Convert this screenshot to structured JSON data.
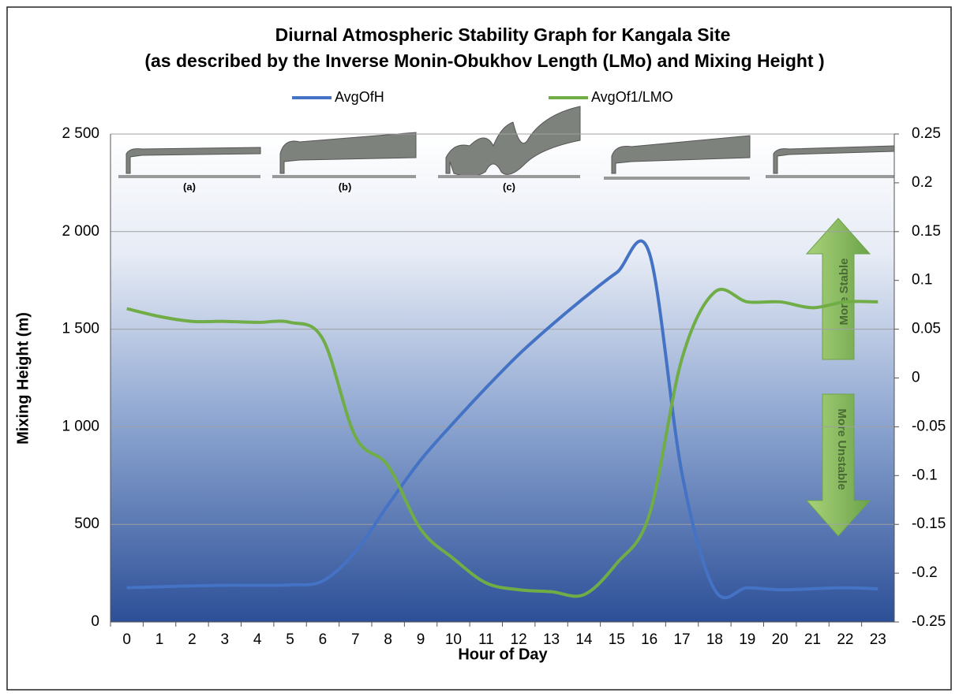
{
  "chart_data": {
    "type": "line",
    "title": "Diurnal Atmospheric Stability Graph for Kangala Site",
    "subtitle": "(as described by the Inverse Monin-Obukhov Length (LMo) and Mixing Height )",
    "x_label": "Hour of Day",
    "y_label": "Mixing Height (m)",
    "categories": [
      0,
      1,
      2,
      3,
      4,
      5,
      6,
      7,
      8,
      9,
      10,
      11,
      12,
      13,
      14,
      15,
      16,
      17,
      18,
      19,
      20,
      21,
      22,
      23
    ],
    "series": [
      {
        "name": "AvgOfH",
        "color": "#4472c4",
        "values": [
          175,
          180,
          185,
          188,
          188,
          190,
          210,
          360,
          600,
          830,
          1020,
          1200,
          1370,
          1520,
          1660,
          1790,
          1890,
          760,
          165,
          175,
          165,
          170,
          175,
          170
        ]
      },
      {
        "name": "AvgOf1/LMO",
        "color": "#70ad47",
        "axis": "y2",
        "values": [
          0.071,
          0.063,
          0.058,
          0.058,
          0.057,
          0.057,
          0.04,
          -0.06,
          -0.09,
          -0.155,
          -0.185,
          -0.21,
          -0.217,
          -0.219,
          -0.222,
          -0.19,
          -0.14,
          0.02,
          0.088,
          0.078,
          0.078,
          0.072,
          0.078,
          0.078
        ]
      }
    ],
    "ylim": [
      0,
      2500
    ],
    "yticks": [
      0,
      500,
      {
        "value": 1000,
        "label": "1 000"
      },
      {
        "value": 1500,
        "label": "1 500"
      },
      {
        "value": 2000,
        "label": "2 000"
      },
      {
        "value": 2500,
        "label": "2 500"
      }
    ],
    "y2lim": [
      -0.25,
      0.25
    ],
    "y2ticks": [
      -0.25,
      -0.2,
      -0.15,
      -0.1,
      -0.05,
      0,
      0.05,
      0.1,
      0.15,
      0.2,
      0.25
    ],
    "grid": true,
    "legend": "top",
    "annotations": [
      "(a)",
      "(b)",
      "(c)",
      "More Stable",
      "More Unstable"
    ]
  }
}
